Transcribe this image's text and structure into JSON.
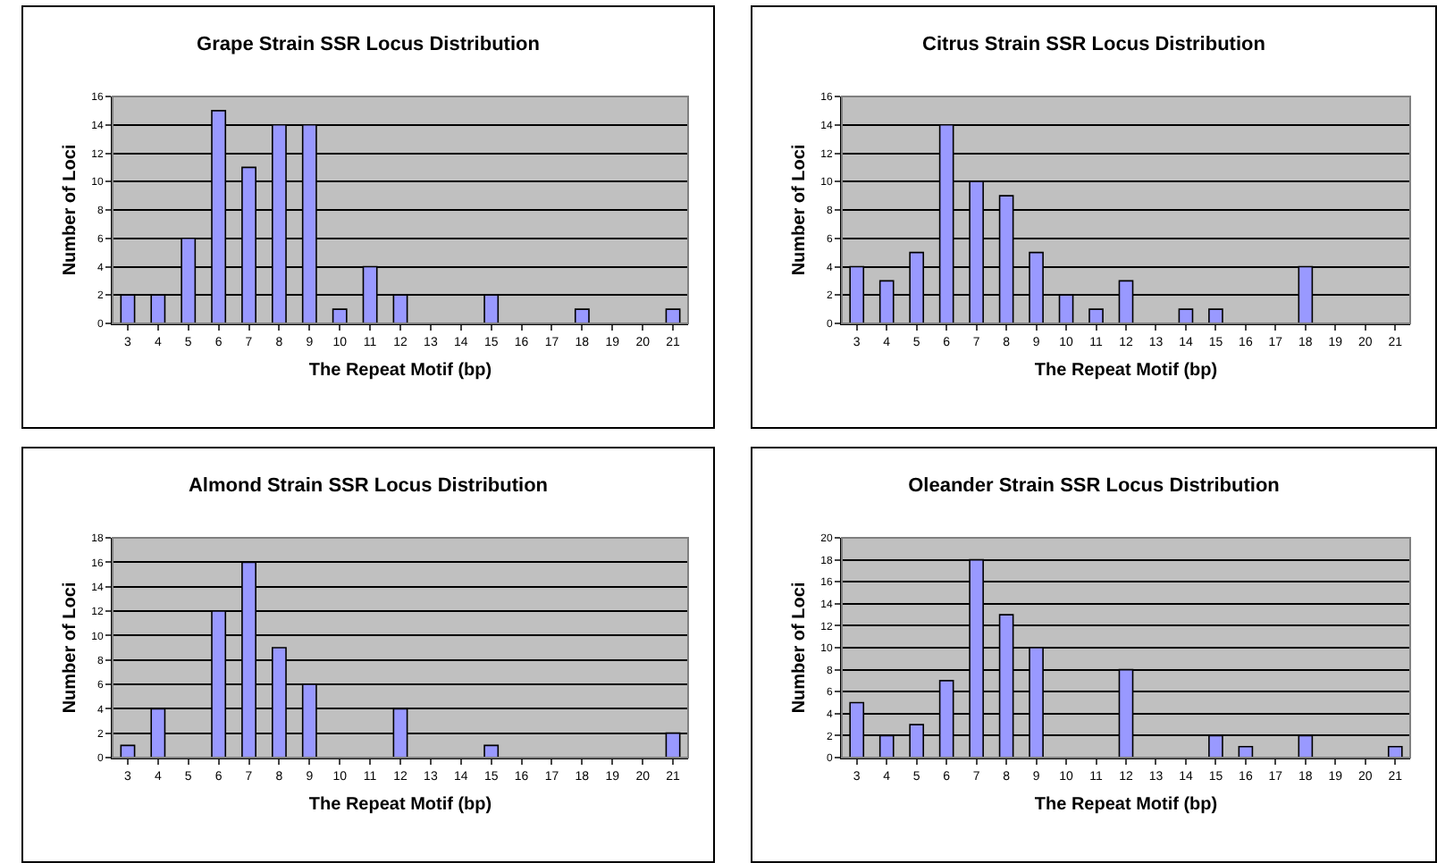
{
  "chart_data": [
    {
      "type": "bar",
      "title": "Grape Strain SSR Locus Distribution",
      "xlabel": "The Repeat Motif (bp)",
      "ylabel": "Number of Loci",
      "categories": [
        "3",
        "4",
        "5",
        "6",
        "7",
        "8",
        "9",
        "10",
        "11",
        "12",
        "13",
        "14",
        "15",
        "16",
        "17",
        "18",
        "19",
        "20",
        "21"
      ],
      "values": [
        2,
        2,
        6,
        15,
        11,
        14,
        14,
        1,
        4,
        2,
        0,
        0,
        2,
        0,
        0,
        1,
        0,
        0,
        1
      ],
      "color": "#9999ff",
      "ylim": [
        0,
        16
      ],
      "yticks": [
        0,
        2,
        4,
        6,
        8,
        10,
        12,
        14,
        16
      ],
      "grid": "y",
      "legend": false
    },
    {
      "type": "bar",
      "title": "Citrus Strain SSR Locus Distribution",
      "xlabel": "The Repeat Motif (bp)",
      "ylabel": "Number of Loci",
      "categories": [
        "3",
        "4",
        "5",
        "6",
        "7",
        "8",
        "9",
        "10",
        "11",
        "12",
        "13",
        "14",
        "15",
        "16",
        "17",
        "18",
        "19",
        "20",
        "21"
      ],
      "values": [
        4,
        3,
        5,
        14,
        10,
        9,
        5,
        2,
        1,
        3,
        0,
        1,
        1,
        0,
        0,
        4,
        0,
        0,
        0
      ],
      "color": "#9999ff",
      "ylim": [
        0,
        16
      ],
      "yticks": [
        0,
        2,
        4,
        6,
        8,
        10,
        12,
        14,
        16
      ],
      "grid": "y",
      "legend": false
    },
    {
      "type": "bar",
      "title": "Almond Strain SSR Locus Distribution",
      "xlabel": "The Repeat Motif (bp)",
      "ylabel": "Number of Loci",
      "categories": [
        "3",
        "4",
        "5",
        "6",
        "7",
        "8",
        "9",
        "10",
        "11",
        "12",
        "13",
        "14",
        "15",
        "16",
        "17",
        "18",
        "19",
        "20",
        "21"
      ],
      "values": [
        1,
        4,
        0,
        12,
        16,
        9,
        6,
        0,
        0,
        4,
        0,
        0,
        1,
        0,
        0,
        0,
        0,
        0,
        2
      ],
      "color": "#9999ff",
      "ylim": [
        0,
        18
      ],
      "yticks": [
        0,
        2,
        4,
        6,
        8,
        10,
        12,
        14,
        16,
        18
      ],
      "grid": "y",
      "legend": false
    },
    {
      "type": "bar",
      "title": "Oleander Strain SSR Locus Distribution",
      "xlabel": "The Repeat Motif (bp)",
      "ylabel": "Number of Loci",
      "categories": [
        "3",
        "4",
        "5",
        "6",
        "7",
        "8",
        "9",
        "10",
        "11",
        "12",
        "13",
        "14",
        "15",
        "16",
        "17",
        "18",
        "19",
        "20",
        "21"
      ],
      "values": [
        5,
        2,
        3,
        7,
        18,
        13,
        10,
        0,
        0,
        8,
        0,
        0,
        2,
        1,
        0,
        2,
        0,
        0,
        1
      ],
      "color": "#9999ff",
      "ylim": [
        0,
        20
      ],
      "yticks": [
        0,
        2,
        4,
        6,
        8,
        10,
        12,
        14,
        16,
        18,
        20
      ],
      "grid": "y",
      "legend": false
    }
  ]
}
